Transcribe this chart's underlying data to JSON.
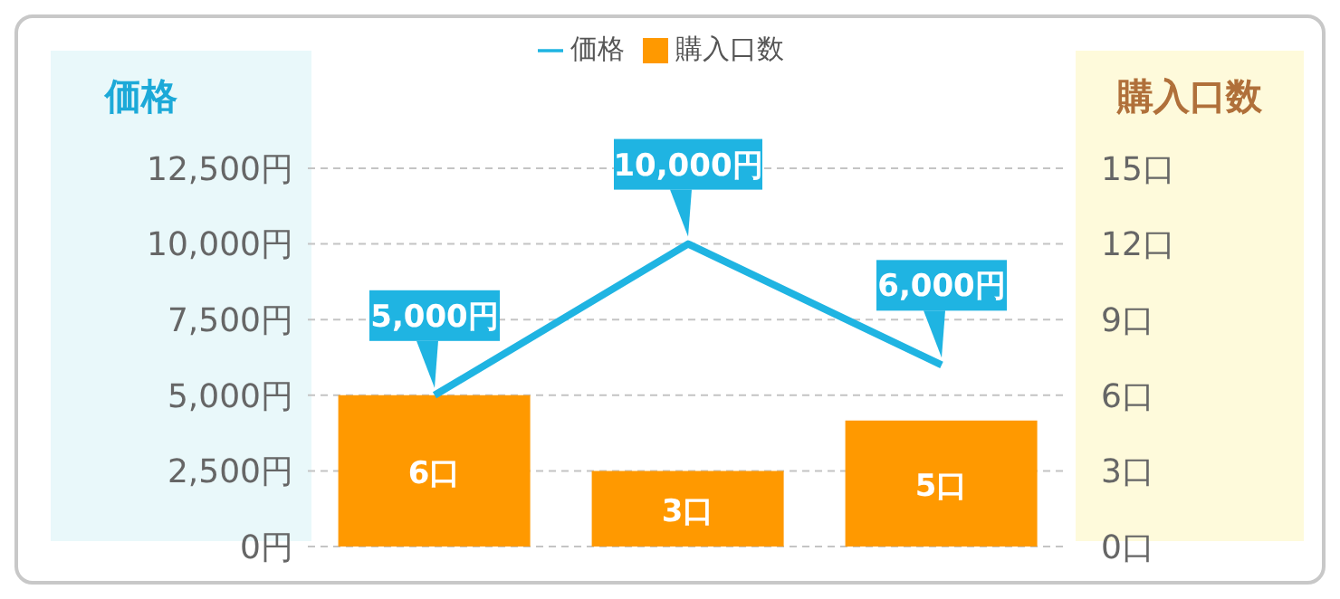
{
  "chart_data": {
    "type": "bar",
    "ylabel": "価格",
    "y2label": "購入口数",
    "categories": [
      null,
      null,
      null
    ],
    "series": [
      {
        "name": "価格",
        "type": "line",
        "color": "#1fb4e2",
        "values": [
          5000,
          10000,
          6000
        ],
        "value_labels": [
          "5,000円",
          "10,000円",
          "6,000円"
        ]
      },
      {
        "name": "購入口数",
        "axis": "y2",
        "color": "#ff9900",
        "values": [
          6,
          3,
          5
        ],
        "value_labels": [
          "6口",
          "3口",
          "5口"
        ]
      }
    ],
    "ylim": [
      0,
      12500
    ],
    "yticks": [
      {
        "value": 0,
        "label": "0円"
      },
      {
        "value": 2500,
        "label": "2,500円"
      },
      {
        "value": 5000,
        "label": "5,000円"
      },
      {
        "value": 7500,
        "label": "7,500円"
      },
      {
        "value": 10000,
        "label": "10,000円"
      },
      {
        "value": 12500,
        "label": "12,500円"
      }
    ],
    "y2lim": [
      0,
      15
    ],
    "y2ticks": [
      {
        "value": 0,
        "label": "0口"
      },
      {
        "value": 3,
        "label": "3口"
      },
      {
        "value": 6,
        "label": "6口"
      },
      {
        "value": 9,
        "label": "9口"
      },
      {
        "value": 12,
        "label": "12口"
      },
      {
        "value": 15,
        "label": "15口"
      }
    ],
    "grid": "y",
    "legend": "top",
    "marker": "none"
  }
}
